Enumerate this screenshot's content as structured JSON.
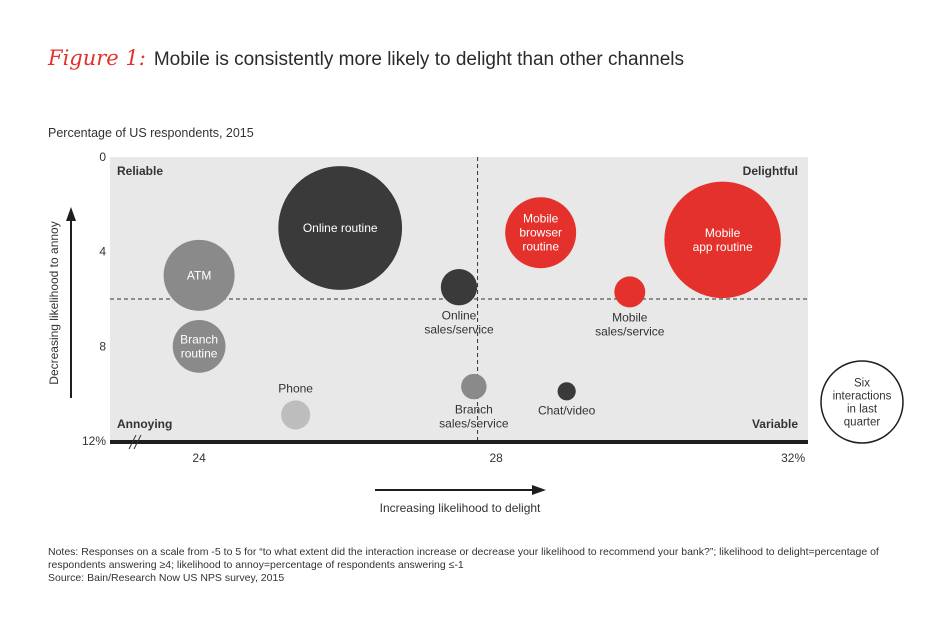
{
  "title": {
    "figure_label": "Figure 1:",
    "text": "Mobile is consistently more likely to delight than other channels"
  },
  "subtitle": "Percentage of US respondents, 2015",
  "notes": [
    "Notes: Responses on a scale from -5 to 5 for “to what extent did the interaction increase or decrease your likelihood to recommend your bank?”; likelihood to delight=percentage of respondents answering ≥4; likelihood to annoy=percentage of respondents answering ≤-1",
    "Source: Bain/Research Now US NPS survey, 2015"
  ],
  "colors": {
    "red": "#e4312b",
    "dark": "#3a3a3a",
    "gray": "#8a8a8a",
    "light": "#bdbdbd",
    "plot_bg": "#e8e8e8"
  },
  "chart_data": {
    "type": "scatter",
    "subtype": "bubble",
    "x_label": "Increasing likelihood to delight",
    "y_label": "Decreasing likelihood to annoy",
    "x_ticks": [
      "24",
      "28",
      "32%"
    ],
    "x_tick_values": [
      24,
      28,
      32
    ],
    "y_ticks": [
      "0",
      "4",
      "8",
      "12%"
    ],
    "y_tick_values": [
      0,
      4,
      8,
      12
    ],
    "xlim": [
      22.8,
      32.2
    ],
    "ylim": [
      0,
      12
    ],
    "reference_lines": {
      "x": 27.75,
      "y": 6
    },
    "quadrant_labels": {
      "top_left": "Reliable",
      "top_right": "Delightful",
      "bottom_left": "Annoying",
      "bottom_right": "Variable"
    },
    "size_legend": {
      "label_lines": [
        "Six",
        "interactions",
        "in last",
        "quarter"
      ]
    },
    "points": [
      {
        "name": "Online routine",
        "label_lines": [
          "Online routine"
        ],
        "x": 25.9,
        "y": 3.0,
        "size": 34,
        "color": "dark",
        "label_pos": "inside"
      },
      {
        "name": "ATM",
        "label_lines": [
          "ATM"
        ],
        "x": 24.0,
        "y": 5.0,
        "size": 19.5,
        "color": "gray",
        "label_pos": "inside"
      },
      {
        "name": "Branch routine",
        "label_lines": [
          "Branch",
          "routine"
        ],
        "x": 24.0,
        "y": 8.0,
        "size": 14.5,
        "color": "gray",
        "label_pos": "inside"
      },
      {
        "name": "Phone",
        "label_lines": [
          "Phone"
        ],
        "x": 25.3,
        "y": 10.9,
        "size": 8,
        "color": "light",
        "label_pos": "above"
      },
      {
        "name": "Online sales/service",
        "label_lines": [
          "Online",
          "sales/service"
        ],
        "x": 27.5,
        "y": 5.5,
        "size": 10,
        "color": "dark",
        "label_pos": "below"
      },
      {
        "name": "Branch sales/service",
        "label_lines": [
          "Branch",
          "sales/service"
        ],
        "x": 27.7,
        "y": 9.7,
        "size": 7,
        "color": "gray",
        "label_pos": "below"
      },
      {
        "name": "Chat/video",
        "label_lines": [
          "Chat/video"
        ],
        "x": 28.95,
        "y": 9.9,
        "size": 5,
        "color": "dark",
        "label_pos": "below"
      },
      {
        "name": "Mobile browser routine",
        "label_lines": [
          "Mobile",
          "browser",
          "routine"
        ],
        "x": 28.6,
        "y": 3.2,
        "size": 19.5,
        "color": "red",
        "label_pos": "inside"
      },
      {
        "name": "Mobile app routine",
        "label_lines": [
          "Mobile",
          "app routine"
        ],
        "x": 31.05,
        "y": 3.5,
        "size": 32,
        "color": "red",
        "label_pos": "inside"
      },
      {
        "name": "Mobile sales/service",
        "label_lines": [
          "Mobile",
          "sales/service"
        ],
        "x": 29.8,
        "y": 5.7,
        "size": 8.5,
        "color": "red",
        "label_pos": "below"
      }
    ]
  }
}
